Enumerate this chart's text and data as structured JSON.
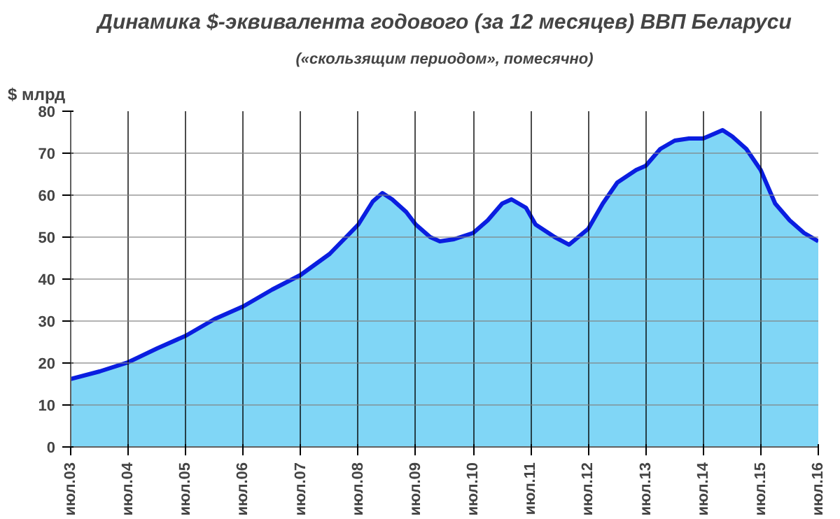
{
  "chart_data": {
    "type": "area",
    "title": "Динамика $-эквивалента годового (за 12 месяцев) ВВП Беларуси",
    "subtitle": "(«скользящим периодом», помесячно)",
    "ylabel": "$ млрд",
    "x": [
      "2003-07",
      "2004-01",
      "2004-07",
      "2005-01",
      "2005-07",
      "2006-01",
      "2006-07",
      "2007-01",
      "2007-07",
      "2008-01",
      "2008-07",
      "2008-10",
      "2008-12",
      "2009-02",
      "2009-05",
      "2009-07",
      "2009-10",
      "2009-12",
      "2010-03",
      "2010-07",
      "2010-10",
      "2011-01",
      "2011-03",
      "2011-06",
      "2011-08",
      "2011-12",
      "2012-03",
      "2012-07",
      "2012-10",
      "2013-01",
      "2013-05",
      "2013-07",
      "2013-10",
      "2014-01",
      "2014-04",
      "2014-07",
      "2014-09",
      "2014-11",
      "2015-01",
      "2015-04",
      "2015-07",
      "2015-10",
      "2016-01",
      "2016-04",
      "2016-07"
    ],
    "series": [
      {
        "color": "#80d6f6",
        "values": [
          16.2,
          18,
          20.2,
          23.5,
          26.5,
          30.5,
          33.5,
          37.5,
          41,
          46,
          53,
          58.5,
          60.5,
          59,
          56,
          53,
          50,
          49,
          49.5,
          51,
          54,
          58,
          59,
          57,
          53,
          50,
          48.2,
          52,
          58,
          63,
          66,
          67,
          71,
          73,
          73.5,
          73.5,
          74.5,
          75.5,
          74,
          71,
          66,
          58,
          54,
          51,
          49
        ]
      }
    ],
    "xlim": [
      "2003-07",
      "2016-07"
    ],
    "xticks": [
      {
        "value": "2003-07",
        "label": "июл.03"
      },
      {
        "value": "2004-07",
        "label": "июл.04"
      },
      {
        "value": "2005-07",
        "label": "июл.05"
      },
      {
        "value": "2006-07",
        "label": "июл.06"
      },
      {
        "value": "2007-07",
        "label": "июл.07"
      },
      {
        "value": "2008-07",
        "label": "июл.08"
      },
      {
        "value": "2009-07",
        "label": "июл.09"
      },
      {
        "value": "2010-07",
        "label": "июл.10"
      },
      {
        "value": "2011-07",
        "label": "июл.11"
      },
      {
        "value": "2012-07",
        "label": "июл.12"
      },
      {
        "value": "2013-07",
        "label": "июл.13"
      },
      {
        "value": "2014-07",
        "label": "июл.14"
      },
      {
        "value": "2015-07",
        "label": "июл.15"
      },
      {
        "value": "2016-07",
        "label": "июл.16"
      }
    ],
    "ylim": [
      0,
      80
    ],
    "yticks": [
      0,
      10,
      20,
      30,
      40,
      50,
      60,
      70,
      80
    ],
    "grid": true
  }
}
